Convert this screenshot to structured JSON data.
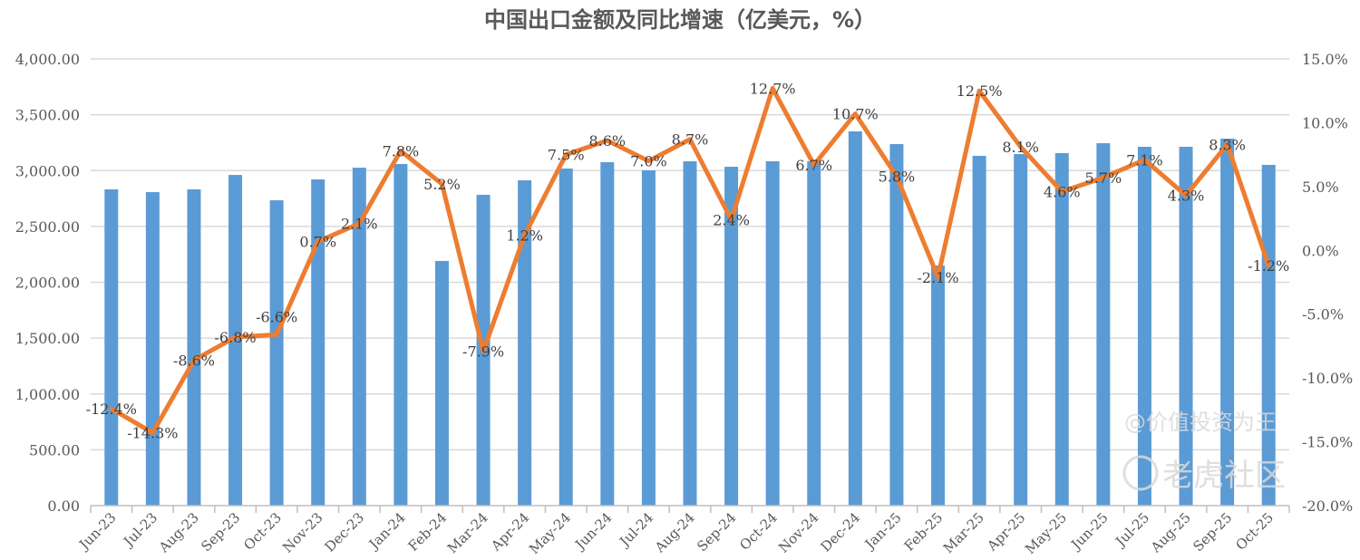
{
  "chart_data": {
    "type": "bar+line",
    "title": "中国出口金额及同比增速（亿美元，%）",
    "categories": [
      "Jun-23",
      "Jul-23",
      "Aug-23",
      "Sep-23",
      "Oct-23",
      "Nov-23",
      "Dec-23",
      "Jan-24",
      "Feb-24",
      "Mar-24",
      "Apr-24",
      "May-24",
      "Jun-24",
      "Jul-24",
      "Aug-24",
      "Sep-24",
      "Oct-24",
      "Nov-24",
      "Dec-24",
      "Jan-25",
      "Feb-25",
      "Mar-25",
      "Apr-25",
      "May-25",
      "Jun-25",
      "Jul-25",
      "Aug-25",
      "Sep-25",
      "Oct-25"
    ],
    "series": [
      {
        "type": "bar",
        "axis": "left",
        "color": "#5B9BD5",
        "values": [
          2832,
          2807,
          2832,
          2961,
          2734,
          2921,
          3026,
          3059,
          2191,
          2783,
          2913,
          3018,
          3075,
          3002,
          3083,
          3034,
          3083,
          3083,
          3351,
          3237,
          2150,
          3132,
          3148,
          3156,
          3245,
          3213,
          3213,
          3286,
          3051
        ]
      },
      {
        "type": "line",
        "axis": "right",
        "color": "#ED7D31",
        "values": [
          -12.4,
          -14.3,
          -8.6,
          -6.8,
          -6.6,
          0.7,
          2.1,
          7.8,
          5.2,
          -7.9,
          1.2,
          7.5,
          8.6,
          7.0,
          8.7,
          2.4,
          12.7,
          6.7,
          10.7,
          5.8,
          -2.1,
          12.5,
          8.1,
          4.6,
          5.7,
          7.1,
          4.3,
          8.3,
          -1.2
        ],
        "labels": [
          "-12.4%",
          "-14.3%",
          "-8.6%",
          "-6.8%",
          "-6.6%",
          "0.7%",
          "2.1%",
          "7.8%",
          "5.2%",
          "-7.9%",
          "1.2%",
          "7.5%",
          "8.6%",
          "7.0%",
          "8.7%",
          "2.4%",
          "12.7%",
          "6.7%",
          "10.7%",
          "5.8%",
          "-2.1%",
          "12.5%",
          "8.1%",
          "4.6%",
          "5.7%",
          "7.1%",
          "4.3%",
          "8.3%",
          "-1.2%"
        ]
      }
    ],
    "left_axis": {
      "ylim": [
        0,
        4000
      ],
      "ticks": [
        "0.00",
        "500.00",
        "1,000.00",
        "1,500.00",
        "2,000.00",
        "2,500.00",
        "3,000.00",
        "3,500.00",
        "4,000.00"
      ]
    },
    "right_axis": {
      "ylim": [
        -20,
        15
      ],
      "ticks": [
        "-20.0%",
        "-15.0%",
        "-10.0%",
        "-5.0%",
        "0.0%",
        "5.0%",
        "10.0%",
        "15.0%"
      ]
    },
    "grid": true,
    "legend": "none"
  },
  "watermark": {
    "brand": "老虎社区",
    "author": "@价值投资为王"
  }
}
